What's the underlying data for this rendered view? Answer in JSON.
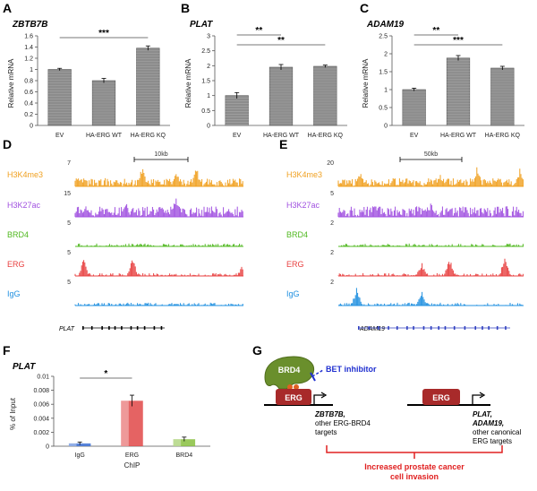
{
  "panels": {
    "A": "A",
    "B": "B",
    "C": "C",
    "D": "D",
    "E": "E",
    "F": "F",
    "G": "G"
  },
  "chart_data": [
    {
      "id": "A",
      "type": "bar",
      "title": "ZBTB7B",
      "xlabel": "",
      "ylabel": "Relative mRNA",
      "categories": [
        "EV",
        "HA-ERG WT",
        "HA-ERG KQ"
      ],
      "values": [
        1.0,
        0.8,
        1.38
      ],
      "errors": [
        0.02,
        0.04,
        0.04
      ],
      "ylim": [
        0,
        1.6
      ],
      "yticks": [
        "0",
        "0.2",
        "0.4",
        "0.6",
        "0.8",
        "1",
        "1.2",
        "1.4",
        "1.6"
      ],
      "significance": [
        {
          "from": 0,
          "to": 2,
          "label": "***"
        }
      ]
    },
    {
      "id": "B",
      "type": "bar",
      "title": "PLAT",
      "xlabel": "",
      "ylabel": "Relative mRNA",
      "categories": [
        "EV",
        "HA-ERG WT",
        "HA-ERG KQ"
      ],
      "values": [
        1.0,
        1.95,
        1.98
      ],
      "errors": [
        0.1,
        0.09,
        0.04
      ],
      "ylim": [
        0,
        3.0
      ],
      "yticks": [
        "0",
        "0.5",
        "1",
        "1.5",
        "2",
        "2.5",
        "3"
      ],
      "significance": [
        {
          "from": 0,
          "to": 1,
          "label": "**"
        },
        {
          "from": 0,
          "to": 2,
          "label": "**"
        }
      ]
    },
    {
      "id": "C",
      "type": "bar",
      "title": "ADAM19",
      "xlabel": "",
      "ylabel": "Relative mRNA",
      "categories": [
        "EV",
        "HA-ERG WT",
        "HA-ERG KQ"
      ],
      "values": [
        1.0,
        1.88,
        1.6
      ],
      "errors": [
        0.04,
        0.07,
        0.05
      ],
      "ylim": [
        0,
        2.5
      ],
      "yticks": [
        "0",
        "0.5",
        "1",
        "1.5",
        "2",
        "2.5"
      ],
      "significance": [
        {
          "from": 0,
          "to": 1,
          "label": "**"
        },
        {
          "from": 0,
          "to": 2,
          "label": "***"
        }
      ]
    },
    {
      "id": "F",
      "type": "bar",
      "title": "PLAT",
      "xlabel": "ChIP",
      "ylabel": "% of Input",
      "categories": [
        "IgG",
        "ERG",
        "BRD4"
      ],
      "values": [
        0.0004,
        0.0065,
        0.001
      ],
      "errors": [
        0.0002,
        0.0008,
        0.0003
      ],
      "ylim": [
        0,
        0.01
      ],
      "yticks": [
        "0",
        "0.002",
        "0.004",
        "0.006",
        "0.008",
        "0.01"
      ],
      "colors": [
        "#3b6fd4",
        "#e04848",
        "#88c040"
      ],
      "significance": [
        {
          "from": 0,
          "to": 1,
          "label": "*"
        }
      ]
    }
  ],
  "tracks": {
    "D": {
      "scale_label": "10kb",
      "gene": "PLAT",
      "rows": [
        {
          "label": "H3K4me3",
          "scale": "7",
          "color": "#f0a020"
        },
        {
          "label": "H3K27ac",
          "scale": "15",
          "color": "#a050e0"
        },
        {
          "label": "BRD4",
          "scale": "5",
          "color": "#50b820"
        },
        {
          "label": "ERG",
          "scale": "5",
          "color": "#e84040"
        },
        {
          "label": "IgG",
          "scale": "5",
          "color": "#2090e0"
        }
      ]
    },
    "E": {
      "scale_label": "50kb",
      "gene": "ADAM19",
      "rows": [
        {
          "label": "H3K4me3",
          "scale": "20",
          "color": "#f0a020"
        },
        {
          "label": "H3K27ac",
          "scale": "5",
          "color": "#a050e0"
        },
        {
          "label": "BRD4",
          "scale": "2",
          "color": "#50b820"
        },
        {
          "label": "ERG",
          "scale": "2",
          "color": "#e84040"
        },
        {
          "label": "IgG",
          "scale": "2",
          "color": "#2090e0"
        }
      ]
    }
  },
  "model": {
    "brd4": "BRD4",
    "inhibitor": "BET inhibitor",
    "erg1": "ERG",
    "erg2": "ERG",
    "targets1_gene": "ZBTB7B,",
    "targets1_l2": "other ERG-BRD4",
    "targets1_l3": "targets",
    "targets2_gene1": "PLAT,",
    "targets2_gene2": "ADAM19,",
    "targets2_l3": "other canonical",
    "targets2_l4": "ERG targets",
    "outcome_l1": "Increased prostate cancer",
    "outcome_l2": "cell invasion"
  }
}
